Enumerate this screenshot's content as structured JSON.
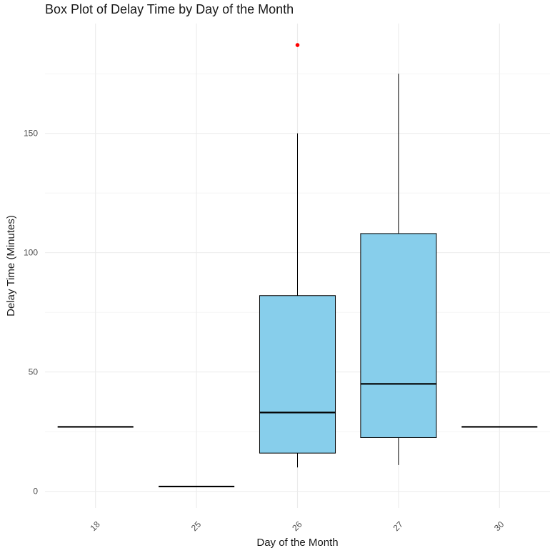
{
  "chart_data": {
    "type": "box",
    "title": "Box Plot of Delay Time by Day of the Month",
    "xlabel": "Day of the Month",
    "ylabel": "Delay Time (Minutes)",
    "categories": [
      "18",
      "25",
      "26",
      "27",
      "30"
    ],
    "yticks": [
      0,
      50,
      100,
      150
    ],
    "ylim": [
      -7,
      196
    ],
    "grid": true,
    "box_fill": "#87CEEB",
    "outlier_color": "#FF0000",
    "boxes": [
      {
        "category": "18",
        "min": 27,
        "q1": 27,
        "median": 27,
        "q3": 27,
        "max": 27,
        "outliers": []
      },
      {
        "category": "25",
        "min": 2,
        "q1": 2,
        "median": 2,
        "q3": 2,
        "max": 2,
        "outliers": []
      },
      {
        "category": "26",
        "min": 10,
        "q1": 16,
        "median": 33,
        "q3": 82,
        "max": 150,
        "outliers": [
          187
        ]
      },
      {
        "category": "27",
        "min": 11,
        "q1": 22.5,
        "median": 45,
        "q3": 108,
        "max": 175,
        "outliers": []
      },
      {
        "category": "30",
        "min": 27,
        "q1": 27,
        "median": 27,
        "q3": 27,
        "max": 27,
        "outliers": []
      }
    ]
  }
}
